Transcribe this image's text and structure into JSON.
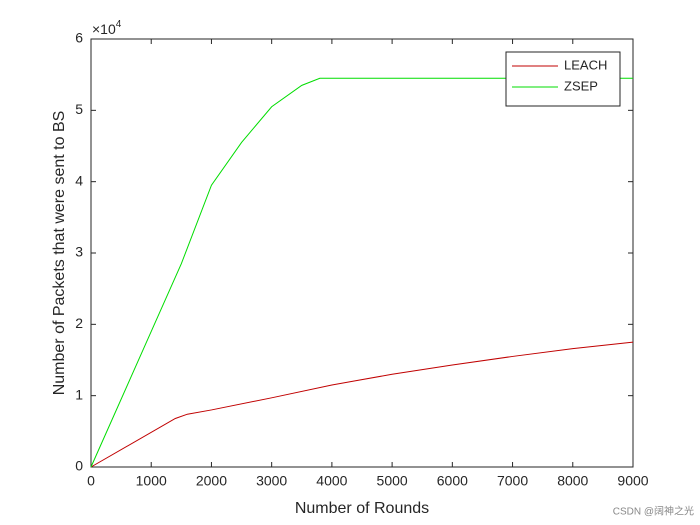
{
  "chart_data": {
    "type": "line",
    "x_label": "Number of Rounds",
    "y_label": "Number of Packets that were sent to BS",
    "y_multiplier": "×10",
    "y_multiplier_exponent": "4",
    "series": [
      {
        "name": "LEACH",
        "color": "#c00000",
        "x": [
          0,
          1400,
          1600,
          2000,
          3000,
          4000,
          5000,
          6000,
          7000,
          8000,
          9000
        ],
        "values": [
          0,
          0.68,
          0.74,
          0.8,
          0.97,
          1.15,
          1.3,
          1.43,
          1.55,
          1.66,
          1.75
        ]
      },
      {
        "name": "ZSEP",
        "color": "#00dd00",
        "x": [
          0,
          1000,
          1500,
          2000,
          2500,
          3000,
          3500,
          3800,
          4000,
          9000
        ],
        "values": [
          0,
          1.9,
          2.85,
          3.95,
          4.55,
          5.05,
          5.35,
          5.45,
          5.45,
          5.45
        ]
      }
    ],
    "xlim": [
      0,
      9000
    ],
    "xticks": [
      0,
      1000,
      2000,
      3000,
      4000,
      5000,
      6000,
      7000,
      8000,
      9000
    ],
    "ylim": [
      0,
      6
    ],
    "yticks": [
      0,
      1,
      2,
      3,
      4,
      5,
      6
    ],
    "grid": false,
    "legend": "northeast"
  },
  "watermark": "CSDN @阔神之光"
}
